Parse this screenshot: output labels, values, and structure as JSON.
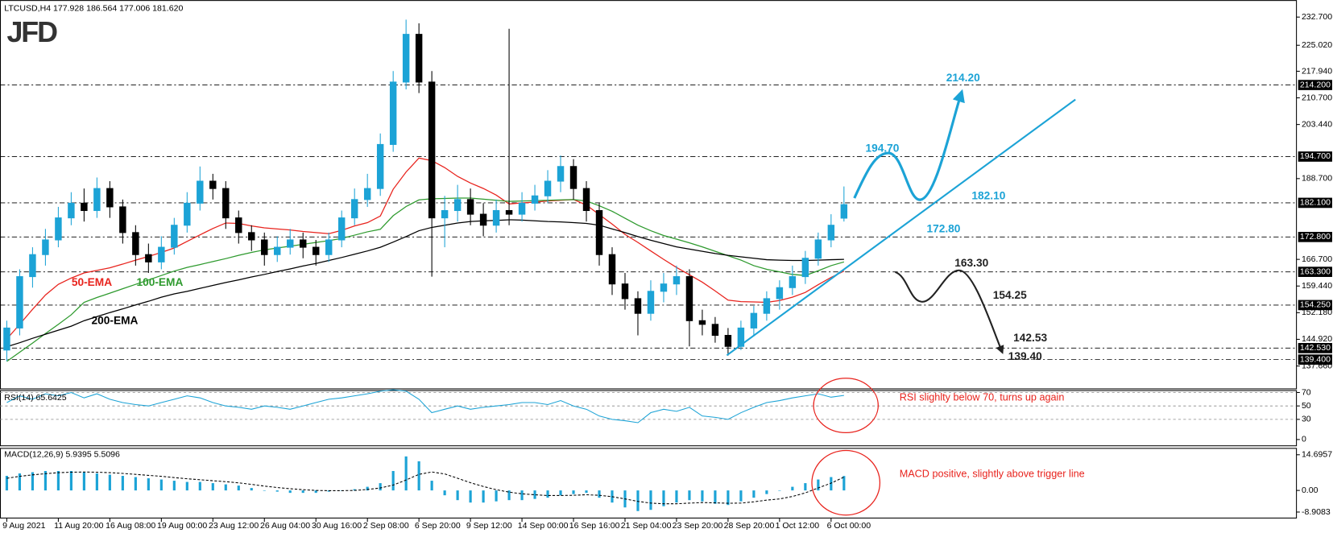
{
  "logo": "JFD",
  "chart_data": [
    {
      "type": "candlestick",
      "title": "LTCUSD,H4  177.928 186.564 177.006 181.620",
      "color": "#1ca3d6",
      "down_color": "#000000",
      "open": [
        142,
        148,
        162,
        168,
        172,
        178,
        182,
        180,
        186,
        181,
        174,
        168,
        166,
        170,
        176,
        182,
        188,
        186,
        178,
        174,
        172,
        168,
        170,
        172,
        170,
        168,
        172,
        178,
        183,
        186,
        198,
        215,
        228,
        215,
        178,
        180,
        183,
        179,
        176,
        180,
        179,
        182,
        184,
        188,
        192,
        186,
        180,
        168,
        160,
        156,
        152,
        158,
        160,
        162,
        150,
        149,
        146,
        143,
        148,
        152,
        156,
        159,
        162,
        167,
        172,
        177.928
      ],
      "high": [
        150,
        164,
        170,
        175,
        181,
        185,
        186,
        189,
        188,
        183,
        176,
        171,
        173,
        178,
        185,
        192,
        190,
        188,
        180,
        176,
        174,
        173,
        175,
        174,
        172,
        174,
        180,
        186,
        190,
        201,
        218,
        232,
        231,
        218,
        184,
        187,
        186,
        182,
        183,
        229.5,
        185,
        187,
        191,
        195,
        194,
        188,
        182,
        170,
        163,
        158,
        161,
        163,
        165,
        164,
        153,
        151,
        148,
        150,
        154,
        158,
        161,
        165,
        169,
        174,
        179,
        186.564
      ],
      "low": [
        139,
        146,
        159,
        165,
        170,
        176,
        177,
        178,
        178,
        171,
        165,
        163,
        164,
        168,
        174,
        180,
        183,
        175,
        171,
        169,
        165,
        166,
        168,
        167,
        165,
        166,
        170,
        176,
        181,
        184,
        196,
        213,
        212,
        162,
        170,
        177,
        176,
        173,
        174,
        176,
        177,
        180,
        182,
        185,
        183,
        177,
        165,
        157,
        153,
        146,
        150,
        155,
        157,
        143,
        146,
        144,
        140.5,
        142,
        146,
        150,
        153,
        157,
        160,
        165,
        170,
        177.006
      ],
      "close": [
        148,
        162,
        168,
        172,
        178,
        182,
        180,
        186,
        181,
        174,
        168,
        166,
        170,
        176,
        182,
        188,
        186,
        178,
        174,
        172,
        168,
        170,
        172,
        170,
        168,
        172,
        178,
        183,
        186,
        198,
        215,
        228,
        215,
        178,
        180,
        183,
        179,
        176,
        180,
        179,
        182,
        184,
        188,
        192,
        186,
        180,
        168,
        160,
        156,
        152,
        158,
        160,
        162,
        150,
        149,
        146,
        143,
        148,
        152,
        156,
        159,
        162,
        167,
        172,
        176,
        181.62
      ],
      "series": [
        {
          "name": "50-EMA",
          "color": "#e8231d",
          "values": [
            145,
            149,
            153.1,
            157,
            159.9,
            161.6,
            163,
            163.7,
            164.4,
            165.4,
            166.5,
            167.5,
            168.6,
            169.8,
            171.6,
            173.4,
            175.1,
            176.6,
            176.5,
            175.8,
            175.3,
            175,
            174.7,
            174.3,
            174,
            173.7,
            174.6,
            175.8,
            176.7,
            178.5,
            185.8,
            190.5,
            194.3,
            193.6,
            191.7,
            189.3,
            187.5,
            186,
            184.2,
            181.8,
            182.1,
            182.3,
            182.6,
            182.8,
            183,
            181.5,
            178.9,
            176.3,
            173.5,
            171.3,
            169,
            166.7,
            164.5,
            162.5,
            160.5,
            158.1,
            155.6,
            155.2,
            155.1,
            155,
            155.5,
            156.4,
            157.7,
            159.8,
            161.8,
            163.5
          ]
        },
        {
          "name": "100-EMA",
          "color": "#2e9a2e",
          "values": [
            138.9,
            141.4,
            143.9,
            146.5,
            149,
            151.6,
            155,
            156.3,
            157.5,
            158.7,
            159.9,
            161.1,
            162.3,
            163.5,
            164.5,
            165.3,
            166.1,
            166.9,
            167.8,
            168.6,
            169.3,
            169.8,
            170.3,
            170.8,
            171.3,
            171.8,
            172.4,
            173.3,
            174.2,
            174.9,
            178.6,
            181.1,
            182.9,
            183.2,
            183.3,
            183.4,
            183.4,
            183.1,
            182.8,
            182.5,
            182.6,
            182.7,
            182.8,
            182.9,
            183,
            182.6,
            181.3,
            179.8,
            177.9,
            176,
            174.5,
            173.2,
            172.2,
            171.2,
            170.1,
            168.9,
            167.7,
            166.5,
            165,
            164,
            163.3,
            162.6,
            162.3,
            163.6,
            165,
            166
          ]
        },
        {
          "name": "200-EMA",
          "color": "#000000",
          "values": [
            142.9,
            144,
            145.2,
            146.3,
            147.4,
            148.5,
            150,
            151.1,
            152.2,
            153.2,
            154.3,
            155.3,
            156.4,
            157.3,
            158,
            158.8,
            159.6,
            160.4,
            161.1,
            161.9,
            162.6,
            163.4,
            164.1,
            164.9,
            165.6,
            166.4,
            167.2,
            168.1,
            169,
            170,
            171.4,
            172.9,
            174.5,
            175.4,
            176,
            176.6,
            177,
            177.2,
            177.3,
            177.5,
            177.4,
            177.2,
            177,
            176.9,
            176.7,
            176.5,
            176,
            175,
            174,
            172.9,
            171.9,
            171,
            170.1,
            169.5,
            168.9,
            168.3,
            167.8,
            167.4,
            167,
            166.6,
            166.5,
            166.4,
            166.4,
            166.5,
            166.6,
            166.7
          ]
        }
      ],
      "levels": [
        {
          "value": 214.2,
          "label": "214.200"
        },
        {
          "value": 194.7,
          "label": "194.700"
        },
        {
          "value": 182.1,
          "label": "182.100"
        },
        {
          "value": 172.8,
          "label": "172.800"
        },
        {
          "value": 163.3,
          "label": "163.300"
        },
        {
          "value": 154.25,
          "label": "154.250"
        },
        {
          "value": 142.53,
          "label": "142.530"
        },
        {
          "value": 139.4,
          "label": "139.400"
        }
      ],
      "annotations": [
        {
          "value": 214.2,
          "label": "214.20",
          "color": "#1ca3d6"
        },
        {
          "value": 194.7,
          "label": "194.70",
          "color": "#1ca3d6"
        },
        {
          "value": 182.1,
          "label": "182.10",
          "color": "#1ca3d6"
        },
        {
          "value": 172.8,
          "label": "172.80",
          "color": "#1ca3d6"
        },
        {
          "value": 163.3,
          "label": "163.30",
          "color": "#222222"
        },
        {
          "value": 154.25,
          "label": "154.25",
          "color": "#222222"
        },
        {
          "value": 142.53,
          "label": "142.53",
          "color": "#222222"
        },
        {
          "value": 139.4,
          "label": "139.40",
          "color": "#222222"
        }
      ],
      "ylim": [
        131.54,
        236.17
      ],
      "yticks": [
        {
          "value": 232.7,
          "label": "232.700"
        },
        {
          "value": 225.02,
          "label": "225.020"
        },
        {
          "value": 217.94,
          "label": "217.940"
        },
        {
          "value": 210.7,
          "label": "210.700"
        },
        {
          "value": 203.44,
          "label": "203.440"
        },
        {
          "value": 188.7,
          "label": "188.700"
        },
        {
          "value": 166.7,
          "label": "166.700"
        },
        {
          "value": 159.44,
          "label": "159.440"
        },
        {
          "value": 152.18,
          "label": "152.180"
        },
        {
          "value": 144.92,
          "label": "144.920"
        },
        {
          "value": 137.66,
          "label": "137.660"
        }
      ]
    },
    {
      "type": "line",
      "title": "RSI(14) 65.6425",
      "color": "#1ca3d6",
      "values": [
        55,
        65,
        60,
        68,
        65,
        70,
        62,
        68,
        60,
        55,
        52,
        50,
        55,
        60,
        65,
        62,
        55,
        50,
        48,
        45,
        50,
        48,
        45,
        50,
        55,
        60,
        62,
        65,
        68,
        72,
        74,
        72,
        60,
        40,
        45,
        50,
        45,
        48,
        50,
        52,
        55,
        55,
        52,
        58,
        50,
        45,
        35,
        30,
        28,
        25,
        40,
        45,
        42,
        48,
        35,
        33,
        30,
        40,
        48,
        55,
        58,
        62,
        65,
        68,
        63,
        65.6425
      ],
      "levels": [
        30,
        50,
        70
      ],
      "ylim": [
        -10,
        73.5
      ],
      "yticks": [
        0,
        30,
        50,
        70
      ],
      "note": "RSI slighlty below 70, turns up again"
    },
    {
      "type": "bar",
      "title": "MACD(12,26,9) 5.9395 5.5096",
      "color": "#1ca3d6",
      "categories": [
        "9 Aug 2021",
        null,
        null,
        null,
        "11 Aug 20:00",
        null,
        null,
        null,
        "16 Aug 08:00",
        null,
        null,
        null,
        "19 Aug 00:00",
        null,
        null,
        null,
        "23 Aug 12:00",
        null,
        null,
        null,
        "26 Aug 04:00",
        null,
        null,
        null,
        "30 Aug 16:00",
        null,
        null,
        null,
        "2 Sep 08:00",
        null,
        null,
        null,
        "6 Sep 20:00",
        null,
        null,
        null,
        "9 Sep 12:00",
        null,
        null,
        null,
        "14 Sep 00:00",
        null,
        null,
        null,
        "16 Sep 16:00",
        null,
        null,
        null,
        "21 Sep 04:00",
        null,
        null,
        null,
        "23 Sep 20:00",
        null,
        null,
        null,
        "28 Sep 20:00",
        null,
        null,
        null,
        "1 Oct 12:00",
        null,
        null,
        null,
        "6 Oct 00:00",
        null
      ],
      "values": [
        6,
        7,
        7.5,
        8,
        8,
        8,
        7.5,
        7,
        6.5,
        6,
        5.5,
        5,
        4.5,
        4,
        3.5,
        3.5,
        3,
        2.5,
        2,
        1,
        0,
        -0.5,
        -1,
        -1,
        -1,
        -0.5,
        0,
        0.5,
        1.5,
        3,
        8,
        14,
        12,
        4,
        -2,
        -4,
        -5,
        -5,
        -4.5,
        -4,
        -4,
        -3.5,
        -3,
        -2,
        -1.5,
        -1,
        -3,
        -5,
        -7,
        -8.5,
        -8,
        -6.5,
        -5,
        -4,
        -4.5,
        -5.5,
        -6,
        -4.5,
        -3,
        -1.5,
        0,
        1.5,
        3,
        4.5,
        5.5,
        5.9395
      ],
      "series": [
        {
          "color": "#000000",
          "values": [
            5,
            5.8,
            6.4,
            6.9,
            7.3,
            7.5,
            7.6,
            7.5,
            7.3,
            7,
            6.6,
            6.2,
            5.8,
            5.3,
            4.8,
            4.4,
            4,
            3.6,
            3.1,
            2.5,
            1.8,
            1.2,
            0.7,
            0.3,
            0,
            -0.1,
            -0.1,
            0,
            0.4,
            1,
            2.2,
            4.3,
            6.6,
            7.6,
            6.8,
            5,
            3.2,
            1.6,
            0.3,
            -0.7,
            -1.4,
            -1.8,
            -2.1,
            -2.1,
            -2,
            -1.8,
            -2,
            -2.6,
            -3.5,
            -4.5,
            -5.2,
            -5.5,
            -5.5,
            -5.2,
            -5,
            -5.1,
            -5.3,
            -5.2,
            -4.7,
            -4,
            -3.5,
            -2.5,
            -1,
            1,
            3,
            5.5096
          ]
        }
      ],
      "ylim": [
        -11.55,
        17.5
      ],
      "yticks": [
        14.6957,
        {
          "value": 0,
          "label": "0.00"
        },
        -8.9083
      ],
      "note": "MACD positive, slightly above trigger line"
    }
  ]
}
